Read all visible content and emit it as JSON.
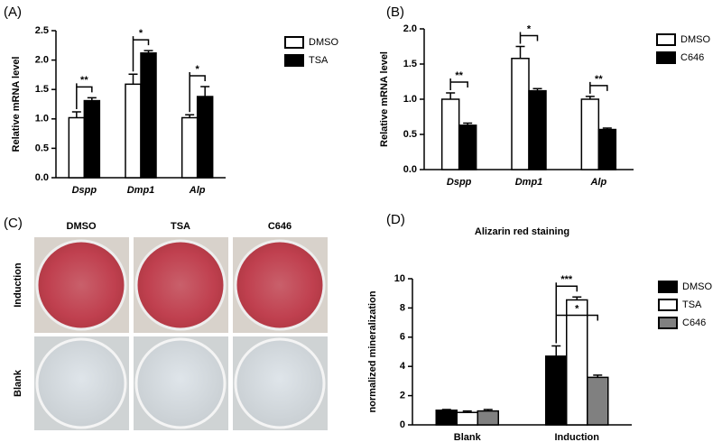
{
  "chart_data": [
    {
      "type": "bar",
      "panel_label": "(A)",
      "y_label": "Relative mRNA level",
      "categories": [
        "Dspp",
        "Dmp1",
        "Alp"
      ],
      "series": [
        {
          "name": "DMSO",
          "color": "#ffffff",
          "values": [
            1.02,
            1.59,
            1.02
          ],
          "errors": [
            0.1,
            0.17,
            0.05
          ]
        },
        {
          "name": "TSA",
          "color": "#000000",
          "values": [
            1.31,
            2.12,
            1.38
          ],
          "errors": [
            0.05,
            0.04,
            0.17
          ]
        }
      ],
      "annotations": [
        "**",
        "*",
        "*"
      ],
      "ylim": [
        0,
        2.5
      ],
      "yticks": [
        {
          "value": 0,
          "label": "0.0"
        },
        {
          "value": 0.5,
          "label": "0.5"
        },
        {
          "value": 1,
          "label": "1.0"
        },
        {
          "value": 1.5,
          "label": "1.5"
        },
        {
          "value": 2,
          "label": "2.0"
        },
        {
          "value": 2.5,
          "label": "2.5"
        }
      ]
    },
    {
      "type": "bar",
      "panel_label": "(B)",
      "y_label": "Relative mRNA level",
      "categories": [
        "Dspp",
        "Dmp1",
        "Alp"
      ],
      "series": [
        {
          "name": "DMSO",
          "color": "#ffffff",
          "values": [
            1.0,
            1.58,
            1.0
          ],
          "errors": [
            0.09,
            0.17,
            0.04
          ]
        },
        {
          "name": "C646",
          "color": "#000000",
          "values": [
            0.63,
            1.12,
            0.57
          ],
          "errors": [
            0.03,
            0.03,
            0.02
          ]
        }
      ],
      "annotations": [
        "**",
        "*",
        "**"
      ],
      "ylim": [
        0,
        2.0
      ],
      "yticks": [
        {
          "value": 0,
          "label": "0.0"
        },
        {
          "value": 0.5,
          "label": "0.5"
        },
        {
          "value": 1,
          "label": "1.0"
        },
        {
          "value": 1.5,
          "label": "1.5"
        },
        {
          "value": 2,
          "label": "2.0"
        }
      ]
    },
    {
      "type": "bar",
      "panel_label": "(D)",
      "title": "Alizarin red staining",
      "y_label": "normalized mineralization",
      "categories": [
        "Blank",
        "Induction"
      ],
      "series": [
        {
          "name": "DMSO",
          "color": "#000000",
          "values": [
            1.0,
            4.7
          ],
          "errors": [
            0.05,
            0.7
          ]
        },
        {
          "name": "TSA",
          "color": "#ffffff",
          "values": [
            0.85,
            8.55
          ],
          "errors": [
            0.1,
            0.2
          ]
        },
        {
          "name": "C646",
          "color": "#808080",
          "values": [
            0.95,
            3.25
          ],
          "errors": [
            0.1,
            0.15
          ]
        }
      ],
      "annotations": [
        "***",
        "*"
      ],
      "ylim": [
        0,
        10
      ],
      "yticks": [
        0,
        2,
        4,
        6,
        8,
        10
      ]
    }
  ],
  "photo_panel": {
    "panel_label": "(C)",
    "columns": [
      "DMSO",
      "TSA",
      "C646"
    ],
    "rows": [
      "Induction",
      "Blank"
    ]
  }
}
